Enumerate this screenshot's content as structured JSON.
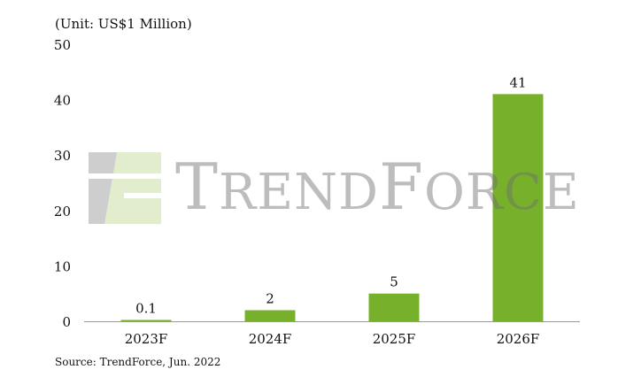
{
  "unit_text": "(Unit: US$1 Million)",
  "source_text": "Source: TrendForce, Jun. 2022",
  "watermark": {
    "text": "TRENDFORCE",
    "logo": "trendforce-logo-icon"
  },
  "colors": {
    "bar": "#77b02a",
    "axis": "#999999",
    "text": "#111111"
  },
  "chart_data": {
    "type": "bar",
    "title": "",
    "xlabel": "",
    "ylabel": "",
    "categories": [
      "2023F",
      "2024F",
      "2025F",
      "2026F"
    ],
    "values": [
      0.1,
      2,
      5,
      41
    ],
    "value_labels": [
      "0.1",
      "2",
      "5",
      "41"
    ],
    "ylim": [
      0,
      50
    ],
    "yticks": [
      0,
      10,
      20,
      30,
      40,
      50
    ],
    "grid": false,
    "legend": "none"
  }
}
